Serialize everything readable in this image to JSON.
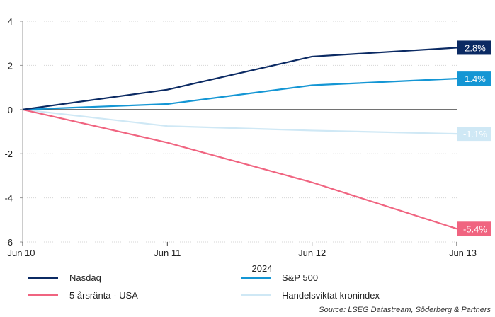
{
  "chart_data": {
    "type": "line",
    "x": [
      "Jun 10",
      "Jun 11",
      "Jun 12",
      "Jun 13"
    ],
    "xlabel": "2024",
    "ylim": [
      -6,
      4
    ],
    "yticks": [
      4,
      2,
      0,
      -2,
      -4,
      -6
    ],
    "grid": "horizontal dotted",
    "legend_position": "bottom",
    "series": [
      {
        "name": "Nasdaq",
        "color": "#0b2a63",
        "values": [
          0,
          0.9,
          2.4,
          2.8
        ],
        "end_label": "2.8%",
        "label_text_color": "#ffffff"
      },
      {
        "name": "S&P 500",
        "color": "#1496d4",
        "values": [
          0,
          0.25,
          1.1,
          1.4
        ],
        "end_label": "1.4%",
        "label_text_color": "#ffffff"
      },
      {
        "name": "5 årsränta - USA",
        "color": "#f06480",
        "values": [
          0,
          -1.5,
          -3.3,
          -5.4
        ],
        "end_label": "-5.4%",
        "label_text_color": "#ffffff"
      },
      {
        "name": "Handelsviktat kronindex",
        "color": "#cfe8f5",
        "values": [
          0,
          -0.75,
          -0.95,
          -1.1
        ],
        "end_label": "-1.1%",
        "label_text_color": "#ffffff"
      }
    ]
  },
  "source": "Source: LSEG Datastream, Söderberg & Partners"
}
